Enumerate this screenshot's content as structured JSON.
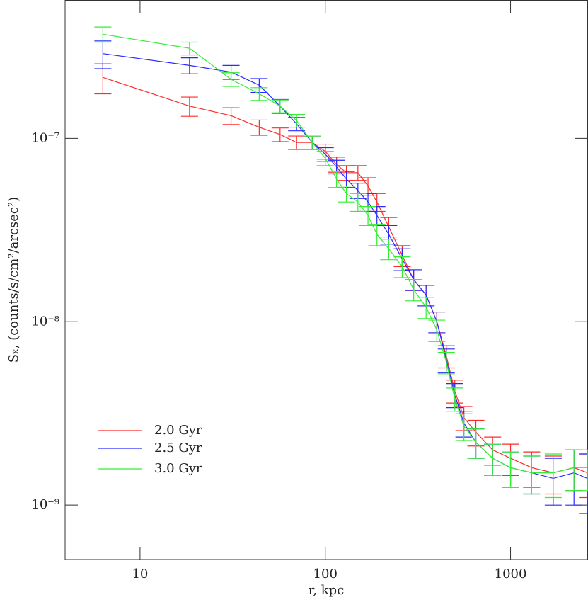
{
  "chart_data": {
    "type": "errorbar-line",
    "xlabel": "r, kpc",
    "ylabel": "Sₓ, (counts/s/cm²/arcsec²)",
    "xscale": "log",
    "yscale": "log",
    "xlim": [
      3.94,
      2607
    ],
    "ylim": [
      5.05e-10,
      5.66e-07
    ],
    "xticks": [
      10,
      100,
      1000
    ],
    "yticks": [
      {
        "value": 1e-09,
        "label": "10⁻⁹"
      },
      {
        "value": 1e-08,
        "label": "10⁻⁸"
      },
      {
        "value": 1e-07,
        "label": "10⁻⁷"
      }
    ],
    "legend": "lower left",
    "x": [
      6.3,
      18.5,
      31,
      44,
      57,
      70,
      85,
      100,
      115,
      130,
      150,
      170,
      190,
      220,
      260,
      300,
      350,
      400,
      450,
      500,
      560,
      650,
      800,
      1000,
      1300,
      1700,
      2200,
      2600
    ],
    "series": [
      {
        "name": "2.0 Gyr",
        "color": "#ff2a2a",
        "values": [
          2.15e-07,
          1.5e-07,
          1.33e-07,
          1.15e-07,
          1.05e-07,
          9.5e-08,
          9.5e-08,
          8.5e-08,
          7.2e-08,
          6.5e-08,
          6.5e-08,
          5.5e-08,
          4.5e-08,
          3.3e-08,
          2.3e-08,
          1.7e-08,
          1.4e-08,
          1e-08,
          6.5e-09,
          4.2e-09,
          3e-09,
          2.5e-09,
          2e-09,
          1.8e-09,
          1.6e-09,
          1.5e-09,
          1.6e-09,
          1.5e-09
        ],
        "errors": [
          4e-08,
          1.8e-08,
          1.4e-08,
          1.1e-08,
          9e-09,
          8e-09,
          8e-09,
          8e-09,
          7e-09,
          6e-09,
          6e-09,
          6e-09,
          5e-09,
          4e-09,
          3e-09,
          2.2e-09,
          1.8e-09,
          1.3e-09,
          9e-10,
          6e-10,
          4.5e-10,
          4e-10,
          3.5e-10,
          3.5e-10,
          3.5e-10,
          3.5e-10,
          4e-10,
          4e-10
        ]
      },
      {
        "name": "2.5 Gyr",
        "color": "#2a2aff",
        "values": [
          2.9e-07,
          2.5e-07,
          2.3e-07,
          1.95e-07,
          1.5e-07,
          1.2e-07,
          9.5e-08,
          8.2e-08,
          7e-08,
          6e-08,
          5.2e-08,
          4.5e-08,
          3.8e-08,
          3e-08,
          2.2e-08,
          1.7e-08,
          1.4e-08,
          1e-08,
          6.2e-09,
          4e-09,
          2.8e-09,
          2.2e-09,
          1.8e-09,
          1.6e-09,
          1.5e-09,
          1.4e-09,
          1.5e-09,
          1.4e-09
        ],
        "errors": [
          5e-08,
          2.5e-08,
          2e-08,
          1.7e-08,
          1.3e-08,
          1e-08,
          8e-09,
          7e-09,
          6e-09,
          6e-09,
          5e-09,
          5e-09,
          4.5e-09,
          3.5e-09,
          3e-09,
          2.2e-09,
          1.8e-09,
          1.3e-09,
          9e-10,
          6e-10,
          4.5e-10,
          4e-10,
          3.5e-10,
          3.5e-10,
          3.5e-10,
          4e-10,
          5e-10,
          5e-10
        ]
      },
      {
        "name": "3.0 Gyr",
        "color": "#33ee33",
        "values": [
          3.7e-07,
          3.1e-07,
          2.1e-07,
          1.75e-07,
          1.5e-07,
          1.25e-07,
          9.5e-08,
          7.8e-08,
          6e-08,
          5e-08,
          4.5e-08,
          3.8e-08,
          3e-08,
          2.5e-08,
          2e-08,
          1.5e-08,
          1.2e-08,
          9e-09,
          6e-09,
          3.8e-09,
          2.7e-09,
          2.2e-09,
          1.8e-09,
          1.6e-09,
          1.5e-09,
          1.5e-09,
          1.6e-09,
          1.6e-09
        ],
        "errors": [
          3.5e-08,
          2.5e-08,
          1.8e-08,
          1.4e-08,
          1.2e-08,
          1e-08,
          8e-09,
          7e-09,
          6e-09,
          5e-09,
          5e-09,
          4.5e-09,
          4e-09,
          3.2e-09,
          2.6e-09,
          2e-09,
          1.6e-09,
          1.2e-09,
          8e-10,
          5.5e-10,
          4.5e-10,
          4e-10,
          3.5e-10,
          3.5e-10,
          3.5e-10,
          4e-10,
          4e-10,
          4e-10
        ]
      }
    ]
  }
}
